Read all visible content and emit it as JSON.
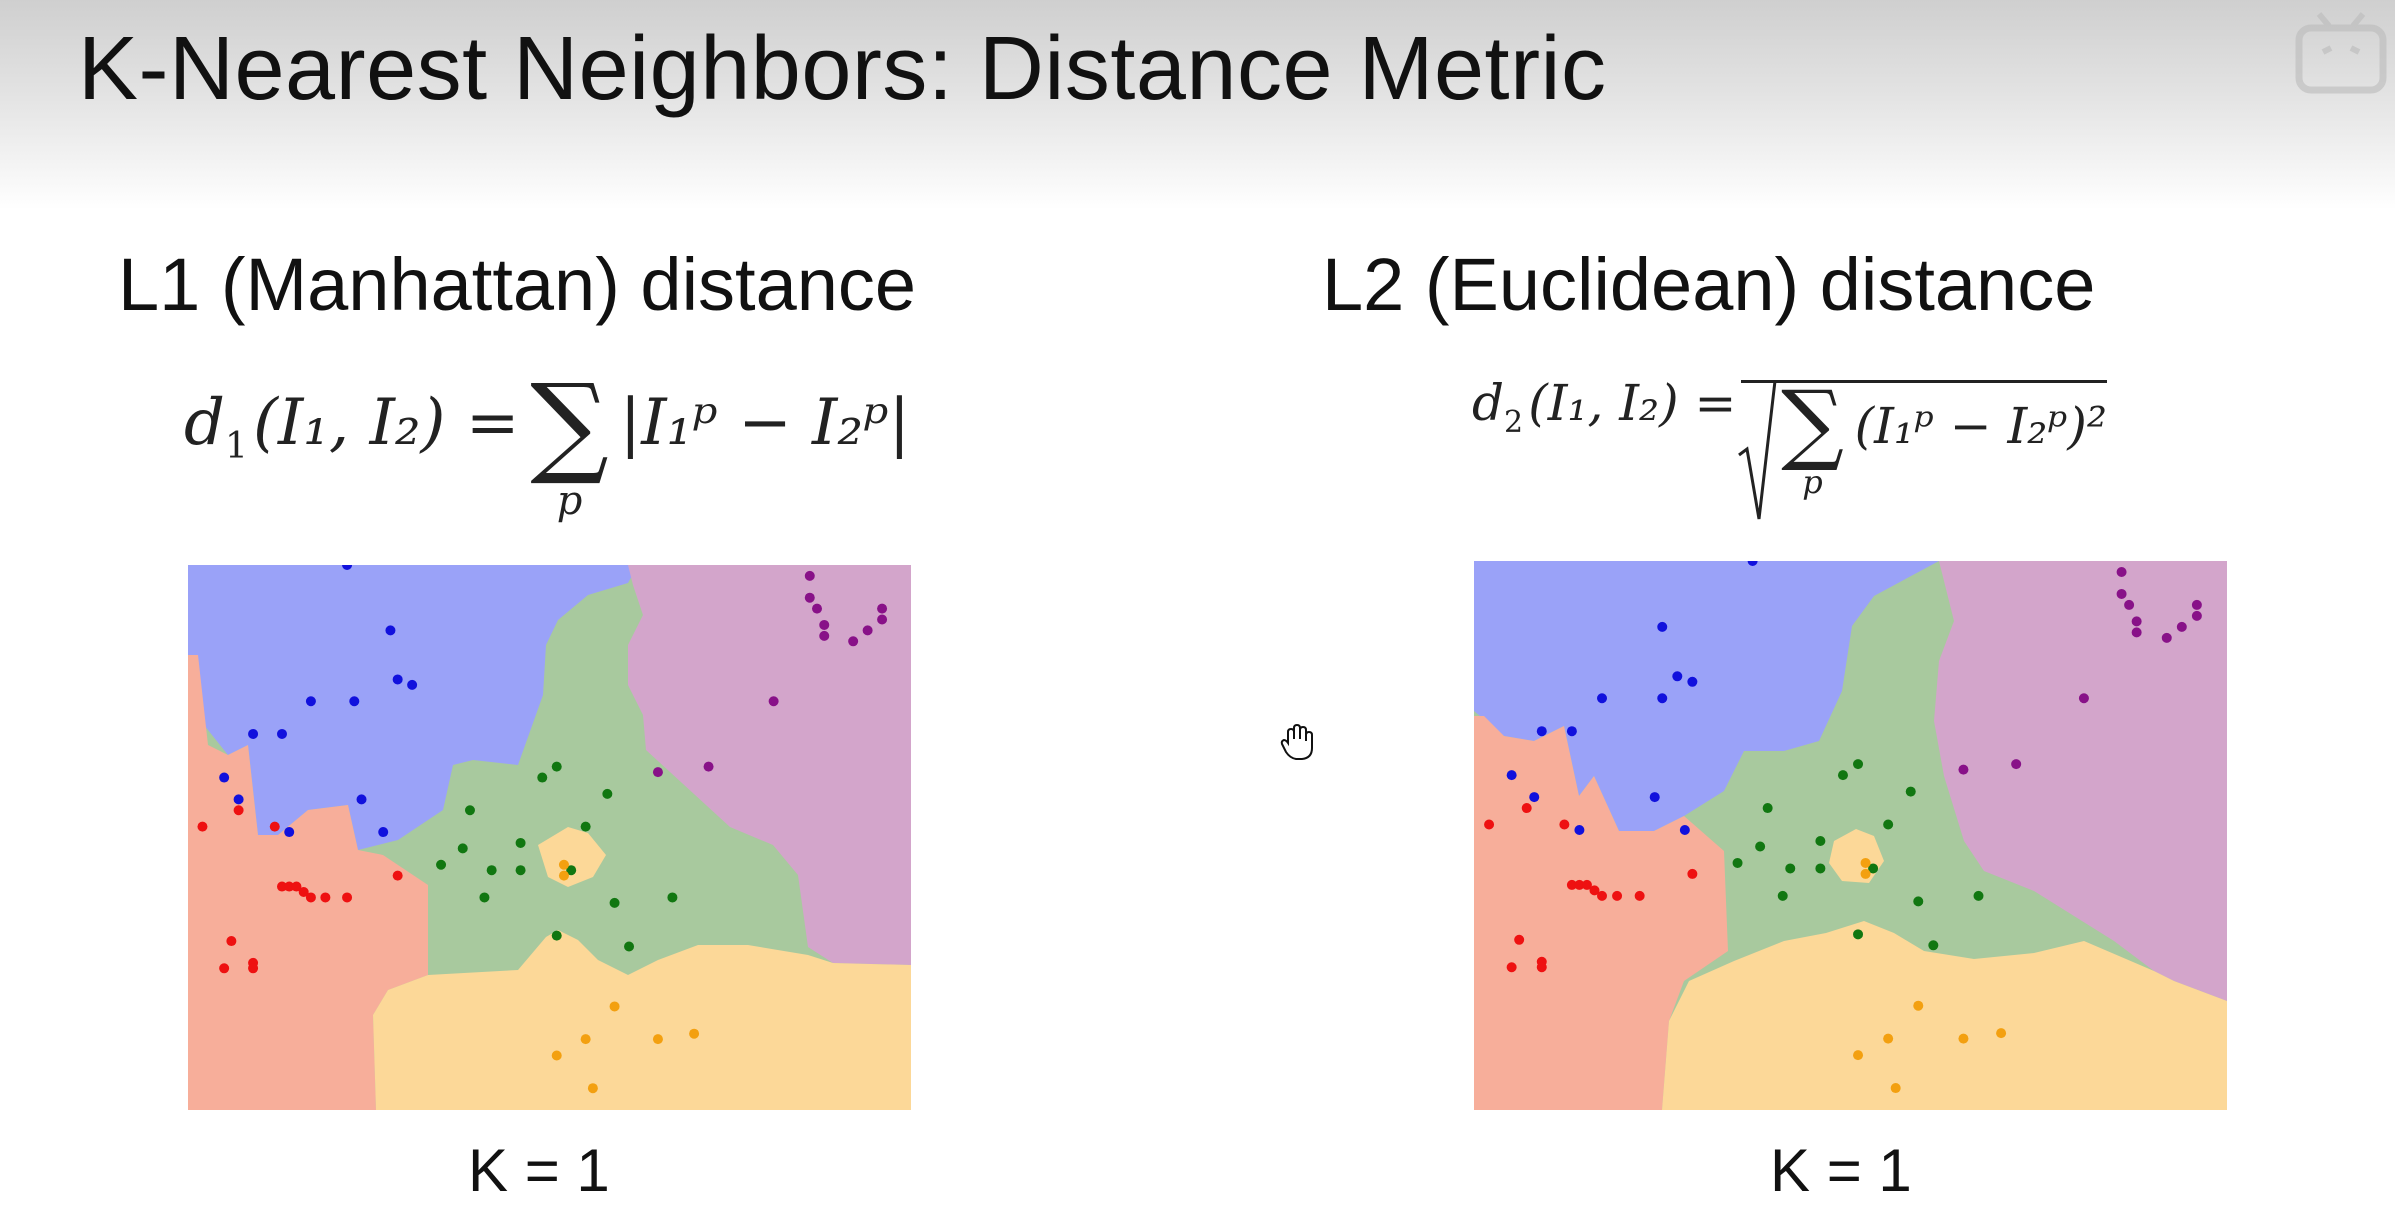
{
  "slide": {
    "title": "K-Nearest Neighbors: Distance Metric"
  },
  "l1": {
    "heading": "L1 (Manhattan) distance",
    "formula": {
      "lhs": "d",
      "lhs_sub": "1",
      "args": "(I₁, I₂) =",
      "sum_symbol": "∑",
      "sum_index": "p",
      "body": "|I₁ᵖ − I₂ᵖ|"
    },
    "k_label": "K = 1"
  },
  "l2": {
    "heading": "L2 (Euclidean) distance",
    "formula": {
      "lhs": "d",
      "lhs_sub": "2",
      "args": "(I₁, I₂) =",
      "sum_symbol": "∑",
      "sum_index": "p",
      "body": "(I₁ᵖ − I₂ᵖ)²"
    },
    "k_label": "K = 1"
  },
  "colors": {
    "blue_region": "#9aa2f8",
    "red_region": "#f7ae9a",
    "green_region": "#a8c99e",
    "purple_region": "#d3a5cb",
    "yellow_region": "#fcd898",
    "blue_point": "#1111dd",
    "red_point": "#ee1111",
    "green_point": "#117711",
    "purple_point": "#881188",
    "yellow_point": "#f3a010"
  },
  "chart_data": [
    {
      "type": "scatter",
      "title": "L1 (Manhattan) distance, K = 1",
      "series": [
        {
          "class": "blue",
          "x": [
            22,
            28,
            29,
            31,
            23,
            17,
            13,
            9,
            5,
            7,
            14,
            24,
            27
          ],
          "y": [
            0,
            12,
            21,
            22,
            25,
            25,
            31,
            31,
            39,
            43,
            49,
            43,
            49
          ]
        },
        {
          "class": "red",
          "x": [
            2,
            7,
            12,
            13,
            14,
            15,
            16,
            17,
            19,
            22,
            29,
            6,
            9,
            5,
            9
          ],
          "y": [
            48,
            45,
            48,
            59,
            59,
            59,
            60,
            61,
            61,
            61,
            57,
            69,
            73,
            74,
            74
          ]
        },
        {
          "class": "green",
          "x": [
            39,
            58,
            51,
            49,
            55,
            46,
            38,
            42,
            46,
            53,
            59,
            67,
            61,
            51,
            41,
            35
          ],
          "y": [
            45,
            42,
            37,
            39,
            48,
            51,
            52,
            56,
            56,
            56,
            62,
            61,
            70,
            68,
            61,
            55
          ]
        },
        {
          "class": "purple",
          "x": [
            86,
            86,
            87,
            88,
            88,
            92,
            94,
            96,
            96,
            81,
            72,
            65
          ],
          "y": [
            2,
            6,
            8,
            11,
            13,
            14,
            12,
            10,
            8,
            25,
            37,
            38
          ]
        },
        {
          "class": "yellow",
          "x": [
            52,
            52,
            59,
            51,
            55,
            65,
            70,
            56
          ],
          "y": [
            55,
            57,
            81,
            90,
            87,
            87,
            86,
            96
          ]
        }
      ]
    },
    {
      "type": "scatter",
      "title": "L2 (Euclidean) distance, K = 1",
      "series": [
        {
          "class": "blue",
          "x": [
            37,
            25,
            27,
            29,
            25,
            17,
            13,
            9,
            5,
            8,
            14,
            24,
            28
          ],
          "y": [
            0,
            12,
            21,
            22,
            25,
            25,
            31,
            31,
            39,
            43,
            49,
            43,
            49
          ]
        },
        {
          "class": "red",
          "x": [
            2,
            7,
            12,
            13,
            14,
            15,
            16,
            17,
            19,
            22,
            29,
            6,
            9,
            5,
            9
          ],
          "y": [
            48,
            45,
            48,
            59,
            59,
            59,
            60,
            61,
            61,
            61,
            57,
            69,
            73,
            74,
            74
          ]
        },
        {
          "class": "green",
          "x": [
            39,
            58,
            51,
            49,
            55,
            46,
            38,
            42,
            46,
            53,
            59,
            67,
            61,
            51,
            41,
            35
          ],
          "y": [
            45,
            42,
            37,
            39,
            48,
            51,
            52,
            56,
            56,
            56,
            62,
            61,
            70,
            68,
            61,
            55
          ]
        },
        {
          "class": "purple",
          "x": [
            86,
            86,
            87,
            88,
            88,
            92,
            94,
            96,
            96,
            81,
            72,
            65
          ],
          "y": [
            2,
            6,
            8,
            11,
            13,
            14,
            12,
            10,
            8,
            25,
            37,
            38
          ]
        },
        {
          "class": "yellow",
          "x": [
            52,
            52,
            59,
            51,
            55,
            65,
            70,
            56
          ],
          "y": [
            55,
            57,
            81,
            90,
            87,
            87,
            86,
            96
          ]
        }
      ]
    }
  ]
}
